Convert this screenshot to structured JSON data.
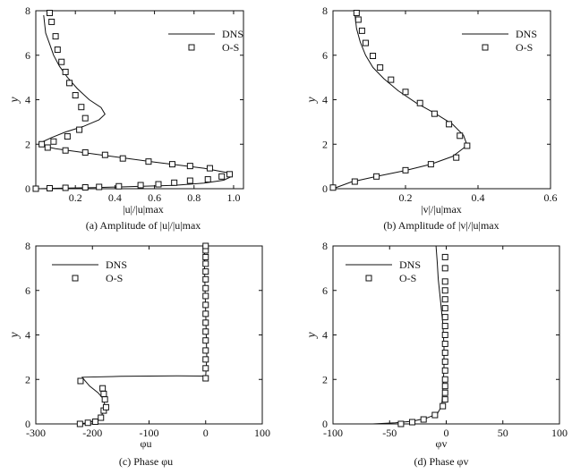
{
  "chart_data": [
    {
      "type": "line",
      "xlabel": "|u|/|u|max",
      "ylabel": "y",
      "caption": "(a) Amplitude of |u|/|u|max",
      "xlim": [
        0,
        1.05
      ],
      "ylim": [
        0,
        8
      ],
      "x_ticks": [
        "0.2",
        "0.4",
        "0.6",
        "0.8",
        "1.0"
      ],
      "x_tick_values": [
        0.2,
        0.4,
        0.6,
        0.8,
        1.0
      ],
      "y_ticks": [
        "0",
        "2",
        "4",
        "6",
        "8"
      ],
      "y_tick_values": [
        0,
        2,
        4,
        6,
        8
      ],
      "legend": {
        "placement": "top-right",
        "line_label": "DNS",
        "marker_label": "O-S"
      },
      "series": [
        {
          "name": "DNS",
          "kind": "line",
          "x": [
            0.01,
            0.1,
            0.3,
            0.5,
            0.7,
            0.85,
            0.95,
            0.99,
            0.97,
            0.85,
            0.6,
            0.3,
            0.1,
            0.02,
            0.02,
            0.08,
            0.15,
            0.24,
            0.32,
            0.35,
            0.33,
            0.27,
            0.21,
            0.16,
            0.12,
            0.09,
            0.07,
            0.05,
            0.04
          ],
          "y": [
            0.0,
            0.02,
            0.05,
            0.1,
            0.15,
            0.25,
            0.38,
            0.55,
            0.72,
            0.92,
            1.2,
            1.55,
            1.8,
            1.95,
            2.05,
            2.3,
            2.55,
            2.8,
            3.1,
            3.35,
            3.65,
            4.0,
            4.5,
            5.0,
            5.5,
            6.0,
            6.5,
            7.0,
            7.8
          ]
        },
        {
          "name": "O-S",
          "kind": "markers",
          "x": [
            0.0,
            0.07,
            0.15,
            0.25,
            0.32,
            0.42,
            0.53,
            0.62,
            0.7,
            0.78,
            0.87,
            0.94,
            0.98,
            0.88,
            0.78,
            0.69,
            0.57,
            0.44,
            0.35,
            0.25,
            0.15,
            0.06,
            0.03,
            0.09,
            0.16,
            0.22,
            0.25,
            0.23,
            0.2,
            0.17,
            0.15,
            0.13,
            0.11,
            0.1,
            0.08,
            0.07
          ],
          "y": [
            0.0,
            0.02,
            0.04,
            0.06,
            0.08,
            0.11,
            0.16,
            0.2,
            0.27,
            0.36,
            0.42,
            0.55,
            0.65,
            0.92,
            1.02,
            1.1,
            1.22,
            1.36,
            1.52,
            1.63,
            1.72,
            1.85,
            2.0,
            2.12,
            2.35,
            2.65,
            3.17,
            3.67,
            4.2,
            4.75,
            5.25,
            5.7,
            6.25,
            6.85,
            7.5,
            7.9
          ]
        }
      ]
    },
    {
      "type": "line",
      "xlabel": "|v|/|u|max",
      "ylabel": "y",
      "caption": "(b) Amplitude of |v|/|u|max",
      "xlim": [
        0,
        0.6
      ],
      "ylim": [
        0,
        8
      ],
      "x_ticks": [
        "0.2",
        "0.4",
        "0.6"
      ],
      "x_tick_values": [
        0.2,
        0.4,
        0.6
      ],
      "y_ticks": [
        "0",
        "2",
        "4",
        "6",
        "8"
      ],
      "y_tick_values": [
        0,
        2,
        4,
        6,
        8
      ],
      "legend": {
        "placement": "top-right",
        "line_label": "DNS",
        "marker_label": "O-S"
      },
      "series": [
        {
          "name": "DNS",
          "kind": "line",
          "x": [
            0.0,
            0.05,
            0.12,
            0.2,
            0.27,
            0.33,
            0.37,
            0.36,
            0.33,
            0.28,
            0.23,
            0.18,
            0.14,
            0.11,
            0.09,
            0.075,
            0.065,
            0.06
          ],
          "y": [
            0.0,
            0.3,
            0.55,
            0.82,
            1.1,
            1.45,
            1.95,
            2.4,
            2.9,
            3.4,
            3.85,
            4.4,
            4.95,
            5.45,
            6.0,
            6.6,
            7.2,
            7.9
          ]
        },
        {
          "name": "O-S",
          "kind": "markers",
          "x": [
            0.0,
            0.06,
            0.12,
            0.2,
            0.27,
            0.34,
            0.37,
            0.35,
            0.32,
            0.28,
            0.24,
            0.2,
            0.16,
            0.13,
            0.11,
            0.09,
            0.08,
            0.07,
            0.065
          ],
          "y": [
            0.05,
            0.32,
            0.55,
            0.83,
            1.1,
            1.4,
            1.93,
            2.38,
            2.9,
            3.37,
            3.85,
            4.35,
            4.9,
            5.45,
            5.97,
            6.55,
            7.1,
            7.6,
            7.9
          ]
        }
      ]
    },
    {
      "type": "line",
      "xlabel": "φu",
      "ylabel": "y",
      "caption": "(c) Phase φu",
      "xlim": [
        -300,
        100
      ],
      "ylim": [
        0,
        8
      ],
      "x_ticks": [
        "-300",
        "-200",
        "-100",
        "0",
        "100"
      ],
      "x_tick_values": [
        -300,
        -200,
        -100,
        0,
        100
      ],
      "y_ticks": [
        "0",
        "2",
        "4",
        "6",
        "8"
      ],
      "y_tick_values": [
        0,
        2,
        4,
        6,
        8
      ],
      "legend": {
        "placement": "top-left",
        "line_label": "DNS",
        "marker_label": "O-S"
      },
      "series": [
        {
          "name": "DNS",
          "kind": "line",
          "x": [
            -222,
            -210,
            -195,
            -185,
            -180,
            -178,
            -180,
            -190,
            -205,
            -215,
            -218,
            -150,
            -50,
            0,
            2,
            1,
            0,
            -1,
            -2,
            -2
          ],
          "y": [
            0.0,
            0.05,
            0.15,
            0.3,
            0.6,
            0.8,
            1.1,
            1.4,
            1.7,
            2.0,
            2.1,
            2.14,
            2.16,
            2.15,
            3.0,
            4.0,
            5.0,
            6.0,
            7.0,
            8.0
          ]
        },
        {
          "name": "O-S",
          "kind": "markers",
          "x": [
            -222,
            -208,
            -195,
            -185,
            -180,
            -176,
            -178,
            -180,
            -182,
            -221,
            0,
            0,
            0,
            0,
            0,
            0,
            0,
            0,
            0,
            0,
            0,
            0,
            0,
            0,
            0,
            0,
            0
          ],
          "y": [
            0.0,
            0.05,
            0.1,
            0.28,
            0.6,
            0.75,
            1.1,
            1.35,
            1.6,
            1.93,
            2.05,
            2.5,
            2.9,
            3.3,
            3.75,
            4.15,
            4.55,
            4.95,
            5.35,
            5.75,
            6.1,
            6.5,
            6.85,
            7.2,
            7.5,
            7.8,
            8.0
          ]
        }
      ]
    },
    {
      "type": "line",
      "xlabel": "φv",
      "ylabel": "y",
      "caption": "(d) Phase φv",
      "xlim": [
        -100,
        100
      ],
      "ylim": [
        0,
        8
      ],
      "x_ticks": [
        "-100",
        "-50",
        "0",
        "50",
        "100"
      ],
      "x_tick_values": [
        -100,
        -50,
        0,
        50,
        100
      ],
      "y_ticks": [
        "0",
        "2",
        "4",
        "6",
        "8"
      ],
      "y_tick_values": [
        0,
        2,
        4,
        6,
        8
      ],
      "legend": {
        "placement": "top-left",
        "line_label": "DNS",
        "marker_label": "O-S"
      },
      "series": [
        {
          "name": "DNS",
          "kind": "line",
          "x": [
            -65,
            -45,
            -30,
            -18,
            -8,
            -4,
            -3,
            -2,
            -2,
            -3,
            -5,
            -7,
            -8,
            -9
          ],
          "y": [
            0.0,
            0.05,
            0.12,
            0.25,
            0.45,
            0.8,
            1.5,
            2.5,
            3.5,
            4.5,
            5.5,
            6.5,
            7.3,
            8.0
          ]
        },
        {
          "name": "O-S",
          "kind": "markers",
          "x": [
            -40,
            -30,
            -20,
            -10,
            -3,
            -1,
            -1,
            -1,
            -1,
            -1,
            -1,
            -1,
            -1,
            -1,
            -1,
            -1,
            -1,
            -1,
            -1,
            -1,
            -1,
            -1
          ],
          "y": [
            0.0,
            0.08,
            0.2,
            0.4,
            0.8,
            1.1,
            1.4,
            1.7,
            2.0,
            2.4,
            2.8,
            3.2,
            3.6,
            4.0,
            4.4,
            4.8,
            5.2,
            5.6,
            6.0,
            6.4,
            7.0,
            7.5
          ]
        }
      ]
    }
  ]
}
